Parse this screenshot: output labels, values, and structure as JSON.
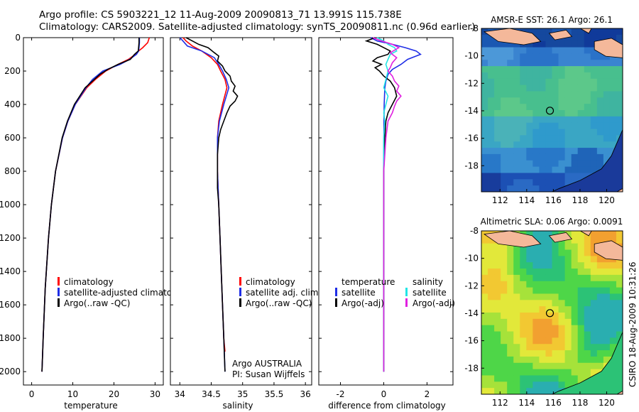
{
  "title": {
    "line1": "Argo profile: CS 5903221_12 11-Aug-2009 20090813_71 13.991S 115.738E",
    "line2": "Climatology: CARS2009. Satellite-adjusted climatology: synTS_20090811.nc (0.96d earlier)"
  },
  "side_label": "CSIRO 18-Aug-2009 10:31:26",
  "colors": {
    "red": "#ff0000",
    "blue": "#1f2ee6",
    "black": "#000000",
    "cyan": "#22e5e5",
    "magenta": "#e020e0",
    "land": "#f4b89a"
  },
  "chart_data": [
    {
      "id": "temperature",
      "type": "line",
      "xlabel": "temperature",
      "ylabel": "",
      "xlim": [
        -2,
        32
      ],
      "ylim": [
        2080,
        0
      ],
      "x_ticks": [
        "0",
        "10",
        "20",
        "30"
      ],
      "x_tick_values": [
        0,
        10,
        20,
        30
      ],
      "y_ticks": [
        "0",
        "200",
        "400",
        "600",
        "800",
        "1000",
        "1200",
        "1400",
        "1600",
        "1800",
        "2000"
      ],
      "y_tick_values": [
        0,
        200,
        400,
        600,
        800,
        1000,
        1200,
        1400,
        1600,
        1800,
        2000
      ],
      "legend": {
        "placement": "lower-right",
        "entries": [
          "climatology",
          "satellite-adjusted climatology",
          "Argo(..raw -QC)"
        ]
      },
      "series": [
        {
          "name": "climatology",
          "color": "red",
          "depth": [
            0,
            30,
            60,
            80,
            100,
            130,
            160,
            200,
            250,
            300,
            400,
            500,
            600,
            800,
            1000,
            1200,
            1500,
            1800,
            2000
          ],
          "values": [
            28.6,
            28.2,
            27.0,
            26.0,
            25.2,
            23.5,
            21.0,
            18.0,
            15.5,
            13.4,
            10.6,
            8.8,
            7.5,
            5.8,
            4.8,
            4.1,
            3.3,
            2.8,
            2.5
          ]
        },
        {
          "name": "satellite-adjusted climatology",
          "color": "blue",
          "depth": [
            0,
            30,
            60,
            80,
            100,
            130,
            160,
            200,
            250,
            300,
            400,
            500,
            600,
            800,
            1000,
            1200,
            1500,
            1800,
            2000
          ],
          "values": [
            26.2,
            26.2,
            26.1,
            26.0,
            25.5,
            23.8,
            21.5,
            17.3,
            14.8,
            13.2,
            10.6,
            8.8,
            7.5,
            5.8,
            4.8,
            4.1,
            3.3,
            2.8,
            2.5
          ]
        },
        {
          "name": "Argo(..raw -QC)",
          "color": "black",
          "depth": [
            0,
            30,
            60,
            80,
            100,
            130,
            160,
            190,
            220,
            260,
            300,
            400,
            500,
            600,
            800,
            1000,
            1200,
            1500,
            1800,
            2000
          ],
          "values": [
            26.1,
            26.1,
            26.0,
            25.9,
            25.0,
            24.0,
            21.0,
            18.5,
            16.6,
            14.8,
            13.0,
            10.4,
            8.7,
            7.4,
            5.8,
            4.8,
            4.1,
            3.3,
            2.8,
            2.5
          ]
        }
      ]
    },
    {
      "id": "salinity",
      "type": "line",
      "xlabel": "salinity",
      "xlim": [
        33.85,
        36.1
      ],
      "ylim": [
        2080,
        0
      ],
      "x_ticks": [
        "34",
        "34.5",
        "35",
        "35.5",
        "36"
      ],
      "x_tick_values": [
        34,
        34.5,
        35,
        35.5,
        36
      ],
      "legend": {
        "placement": "lower-right",
        "entries": [
          "climatology",
          "satellite adj. clim.",
          "Argo(..raw -QC)"
        ]
      },
      "annotation": [
        "Argo AUSTRALIA",
        "PI: Susan Wijffels"
      ],
      "series": [
        {
          "name": "climatology",
          "color": "red",
          "depth": [
            0,
            20,
            50,
            80,
            120,
            160,
            200,
            250,
            300,
            400,
            500,
            600,
            800,
            1000,
            1200,
            1400,
            1600,
            1800,
            1880
          ],
          "values": [
            34.05,
            34.1,
            34.2,
            34.35,
            34.5,
            34.6,
            34.65,
            34.72,
            34.75,
            34.68,
            34.62,
            34.6,
            34.6,
            34.62,
            34.64,
            34.66,
            34.68,
            34.7,
            34.72
          ]
        },
        {
          "name": "satellite adj. clim.",
          "color": "blue",
          "depth": [
            0,
            20,
            50,
            80,
            120,
            160,
            200,
            250,
            300,
            400,
            500,
            600,
            800,
            1000,
            1200,
            1400,
            1600,
            1800,
            2000
          ],
          "values": [
            34.0,
            34.05,
            34.12,
            34.35,
            34.55,
            34.62,
            34.68,
            34.74,
            34.78,
            34.7,
            34.63,
            34.6,
            34.6,
            34.62,
            34.64,
            34.66,
            34.68,
            34.7,
            34.72
          ]
        },
        {
          "name": "Argo(..raw -QC)",
          "color": "black",
          "depth": [
            0,
            20,
            40,
            60,
            90,
            110,
            140,
            170,
            200,
            230,
            260,
            290,
            320,
            350,
            380,
            410,
            450,
            500,
            550,
            600,
            700,
            800,
            900,
            1000,
            1200,
            1400,
            1600,
            1800,
            2000
          ],
          "values": [
            34.1,
            34.2,
            34.3,
            34.45,
            34.55,
            34.62,
            34.6,
            34.68,
            34.72,
            34.8,
            34.82,
            34.88,
            34.85,
            34.92,
            34.88,
            34.8,
            34.75,
            34.7,
            34.65,
            34.62,
            34.6,
            34.6,
            34.6,
            34.62,
            34.64,
            34.66,
            34.68,
            34.7,
            34.72
          ]
        }
      ]
    },
    {
      "id": "difference",
      "type": "line",
      "xlabel": "difference from climatology",
      "xlim": [
        -3,
        3.2
      ],
      "ylim": [
        2080,
        0
      ],
      "x_ticks": [
        "-2",
        "0",
        "2"
      ],
      "x_tick_values": [
        -2,
        0,
        2
      ],
      "legend": {
        "placement": "lower-right",
        "headers": [
          "temperature",
          "salinity"
        ],
        "entries": [
          "satellite",
          "Argo(-adj)",
          "satellite",
          "Argo(-adj)"
        ]
      },
      "series": [
        {
          "name": "temperature satellite",
          "color": "blue",
          "depth": [
            0,
            20,
            40,
            60,
            80,
            100,
            130,
            160,
            190,
            220,
            260,
            300,
            400,
            500,
            700,
            1000,
            2000
          ],
          "values": [
            -0.6,
            -0.3,
            0.4,
            1.0,
            1.5,
            1.7,
            1.1,
            0.8,
            0.4,
            0.2,
            0.1,
            0.05,
            0.02,
            0.01,
            0.0,
            0.0,
            0.0
          ]
        },
        {
          "name": "temperature Argo(-adj)",
          "color": "black",
          "depth": [
            0,
            20,
            40,
            60,
            80,
            100,
            120,
            140,
            160,
            180,
            200,
            230,
            260,
            300,
            350,
            400,
            450,
            500,
            600,
            800,
            1000,
            1200,
            1600,
            2000
          ],
          "values": [
            -0.4,
            -0.8,
            -0.3,
            0.0,
            0.3,
            0.2,
            -0.3,
            -0.5,
            -0.1,
            -0.4,
            -0.2,
            0.0,
            0.3,
            0.5,
            0.6,
            0.4,
            0.2,
            0.1,
            0.05,
            0.0,
            0.0,
            0.0,
            0.0,
            0.0
          ]
        },
        {
          "name": "salinity satellite",
          "color": "cyan",
          "depth": [
            0,
            20,
            40,
            60,
            80,
            100,
            130,
            160,
            200,
            250,
            300,
            350,
            400,
            450,
            500,
            600,
            800,
            1000,
            2000
          ],
          "values": [
            -0.3,
            0.0,
            0.2,
            0.5,
            0.6,
            0.3,
            0.2,
            0.1,
            0.2,
            0.1,
            0.0,
            0.2,
            0.1,
            0.0,
            0.05,
            0.0,
            0.0,
            0.0,
            0.0
          ]
        },
        {
          "name": "salinity Argo(-adj)",
          "color": "magenta",
          "depth": [
            0,
            20,
            40,
            60,
            90,
            120,
            150,
            180,
            200,
            230,
            260,
            290,
            320,
            350,
            380,
            410,
            450,
            500,
            600,
            700,
            800,
            900,
            1000,
            1200,
            1600,
            2000
          ],
          "values": [
            -0.5,
            -0.1,
            0.4,
            0.7,
            0.3,
            0.6,
            0.4,
            0.3,
            0.2,
            0.4,
            0.5,
            0.7,
            0.6,
            0.8,
            0.6,
            0.5,
            0.4,
            0.2,
            0.1,
            0.05,
            0.0,
            0.0,
            0.0,
            0.0,
            0.0,
            0.0
          ]
        }
      ]
    },
    {
      "id": "sst_map",
      "type": "heatmap",
      "title": "AMSR-E SST: 26.1 Argo: 26.1",
      "xlim": [
        110.6,
        121.2
      ],
      "ylim": [
        -19.9,
        -8
      ],
      "x_ticks": [
        "112",
        "114",
        "116",
        "118",
        "120"
      ],
      "x_tick_values": [
        112,
        114,
        116,
        118,
        120
      ],
      "y_ticks": [
        "-8",
        "-10",
        "-12",
        "-14",
        "-16",
        "-18"
      ],
      "y_tick_values": [
        -8,
        -10,
        -12,
        -14,
        -16,
        -18
      ],
      "marker": {
        "lon": 115.738,
        "lat": -13.991
      },
      "field": "sst"
    },
    {
      "id": "sla_map",
      "type": "heatmap",
      "title": "Altimetric SLA: 0.06 Argo: 0.0091",
      "xlim": [
        110.6,
        121.2
      ],
      "ylim": [
        -19.9,
        -8
      ],
      "x_ticks": [
        "112",
        "114",
        "116",
        "118",
        "120"
      ],
      "x_tick_values": [
        112,
        114,
        116,
        118,
        120
      ],
      "y_ticks": [
        "-8",
        "-10",
        "-12",
        "-14",
        "-16",
        "-18"
      ],
      "y_tick_values": [
        -8,
        -10,
        -12,
        -14,
        -16,
        -18
      ],
      "marker": {
        "lon": 115.738,
        "lat": -13.991
      },
      "field": "sla"
    }
  ]
}
